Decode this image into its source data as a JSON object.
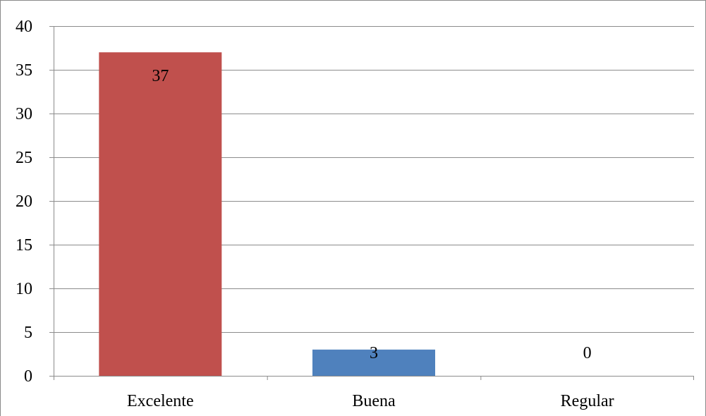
{
  "chart_data": {
    "type": "bar",
    "categories": [
      "Excelente",
      "Buena",
      "Regular"
    ],
    "values": [
      37,
      3,
      0
    ],
    "bar_colors": [
      "#c0504d",
      "#4f81bd",
      "#9bbb59"
    ],
    "data_labels": [
      "37",
      "3",
      "0"
    ],
    "y_ticks": [
      "0",
      "5",
      "10",
      "15",
      "20",
      "25",
      "30",
      "35",
      "40"
    ],
    "ylim": [
      0,
      40
    ],
    "title": "",
    "xlabel": "",
    "ylabel": "",
    "grid": true,
    "legend": "none"
  },
  "colors": {
    "gridline": "#8c8c8c",
    "axis": "#8c8c8c",
    "frame": "#8a8a8a",
    "text": "#000000"
  }
}
